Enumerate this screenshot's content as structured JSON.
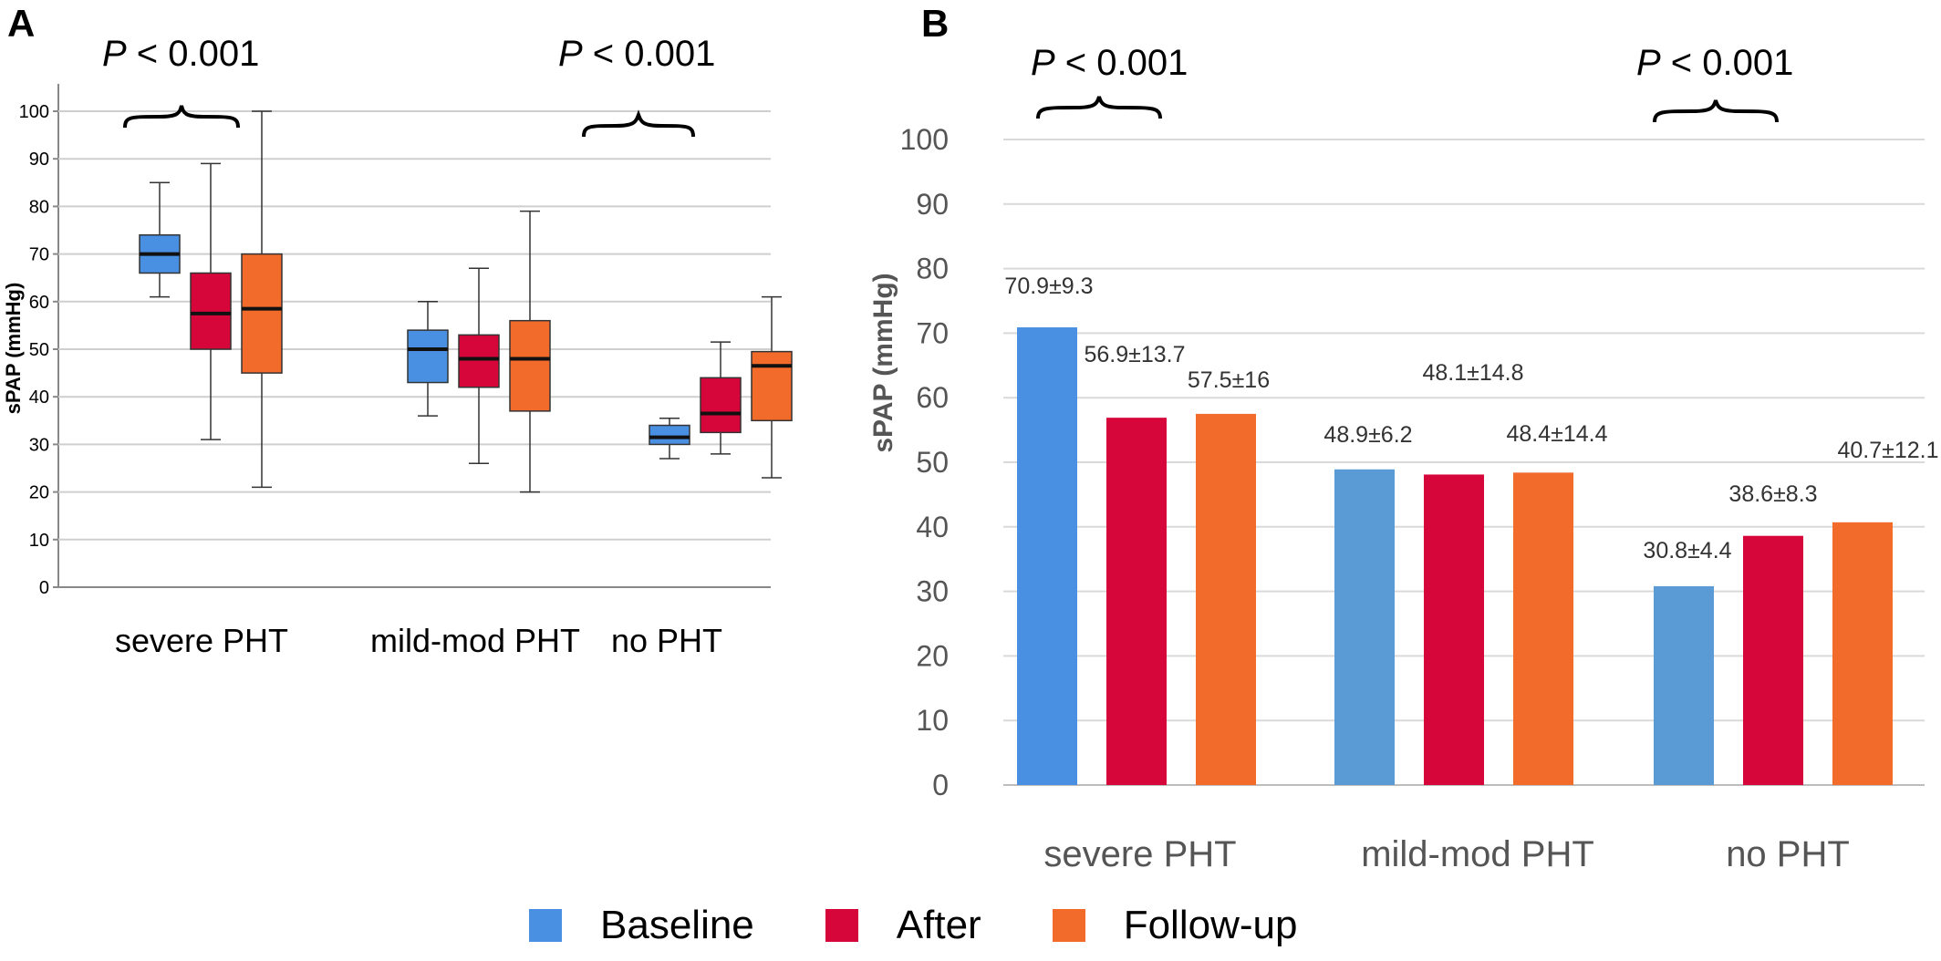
{
  "panel_a": {
    "letter": "A",
    "ylabel": "sPAP (mmHg)",
    "yticks": [
      "0",
      "10",
      "20",
      "30",
      "40",
      "50",
      "60",
      "70",
      "80",
      "90",
      "100"
    ],
    "categories": [
      "severe PHT",
      "mild-mod PHT",
      "no PHT"
    ],
    "sig_left": {
      "p": "P",
      "rest": " < 0.001"
    },
    "sig_right": {
      "p": "P",
      "rest": " < 0.001"
    }
  },
  "panel_b": {
    "letter": "B",
    "ylabel": "sPAP (mmHg)",
    "yticks": [
      "0",
      "10",
      "20",
      "30",
      "40",
      "50",
      "60",
      "70",
      "80",
      "90",
      "100"
    ],
    "categories": [
      "severe PHT",
      "mild-mod PHT",
      "no PHT"
    ],
    "sig_left": {
      "p": "P",
      "rest": " < 0.001"
    },
    "sig_right": {
      "p": "P",
      "rest": " < 0.001"
    }
  },
  "legend": {
    "items": [
      {
        "label": "Baseline",
        "color": "#4a90e2"
      },
      {
        "label": "After",
        "color": "#d7063a"
      },
      {
        "label": "Follow-up",
        "color": "#f26b2b"
      }
    ]
  },
  "chart_data": [
    {
      "type": "boxplot",
      "panel": "A",
      "ylabel": "sPAP (mmHg)",
      "ylim": [
        0,
        100
      ],
      "grid": true,
      "categories": [
        "severe PHT",
        "mild-mod PHT",
        "no PHT"
      ],
      "series": [
        {
          "name": "Baseline",
          "color": "#4a90e2",
          "boxes": [
            {
              "min": 61,
              "q1": 66,
              "median": 70,
              "q3": 74,
              "max": 85
            },
            {
              "min": 36,
              "q1": 43,
              "median": 50,
              "q3": 54,
              "max": 60
            },
            {
              "min": 27,
              "q1": 30,
              "median": 31.5,
              "q3": 34,
              "max": 35.5
            }
          ]
        },
        {
          "name": "After",
          "color": "#d7063a",
          "boxes": [
            {
              "min": 31,
              "q1": 50,
              "median": 57.5,
              "q3": 66,
              "max": 89
            },
            {
              "min": 26,
              "q1": 42,
              "median": 48,
              "q3": 53,
              "max": 67
            },
            {
              "min": 28,
              "q1": 32.5,
              "median": 36.5,
              "q3": 44,
              "max": 51.5
            }
          ]
        },
        {
          "name": "Follow-up",
          "color": "#f26b2b",
          "boxes": [
            {
              "min": 21,
              "q1": 45,
              "median": 58.5,
              "q3": 70,
              "max": 100
            },
            {
              "min": 20,
              "q1": 37,
              "median": 48,
              "q3": 56,
              "max": 79
            },
            {
              "min": 23,
              "q1": 35,
              "median": 46.5,
              "q3": 49.5,
              "max": 61
            }
          ]
        }
      ]
    },
    {
      "type": "bar",
      "panel": "B",
      "ylabel": "sPAP (mmHg)",
      "ylim": [
        0,
        100
      ],
      "grid": true,
      "categories": [
        "severe PHT",
        "mild-mod PHT",
        "no PHT"
      ],
      "series": [
        {
          "name": "Baseline",
          "color": "#4a90e2",
          "values": [
            70.9,
            48.9,
            30.8
          ],
          "labels": [
            "70.9±9.3",
            "48.9±6.2",
            "30.8±4.4"
          ]
        },
        {
          "name": "After",
          "color": "#d7063a",
          "values": [
            56.9,
            48.1,
            38.6
          ],
          "labels": [
            "56.9±13.7",
            "48.1±14.8",
            "38.6±8.3"
          ]
        },
        {
          "name": "Follow-up",
          "color": "#f26b2b",
          "values": [
            57.5,
            48.4,
            40.7
          ],
          "labels": [
            "57.5±16",
            "48.4±14.4",
            "40.7±12.1"
          ]
        }
      ]
    }
  ]
}
